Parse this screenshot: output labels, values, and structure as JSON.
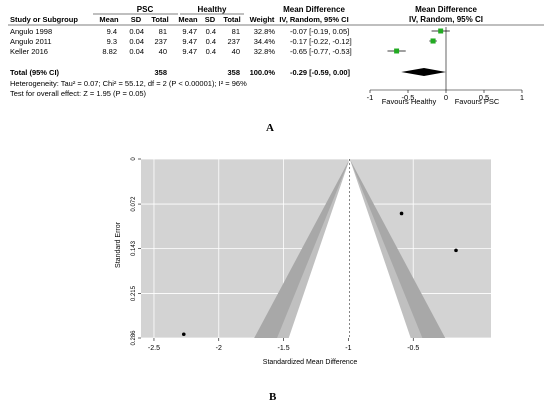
{
  "forest": {
    "header": {
      "group1": "PSC",
      "group2": "Healthy",
      "effect": "Mean Difference",
      "effect_sub": "IV, Random, 95% CI",
      "plot_title": "Mean Difference",
      "plot_sub": "IV, Random, 95% CI"
    },
    "columns": [
      "Study or Subgroup",
      "Mean",
      "SD",
      "Total",
      "Mean",
      "SD",
      "Total",
      "Weight",
      "IV, Random, 95% CI"
    ],
    "studies": [
      {
        "name": "Angulo 1998",
        "m1": "9.4",
        "sd1": "0.04",
        "n1": "81",
        "m2": "9.47",
        "sd2": "0.4",
        "n2": "81",
        "weight": "32.8%",
        "ci": "-0.07 [-0.19, 0.05]"
      },
      {
        "name": "Angulo 2011",
        "m1": "9.3",
        "sd1": "0.04",
        "n1": "237",
        "m2": "9.47",
        "sd2": "0.4",
        "n2": "237",
        "weight": "34.4%",
        "ci": "-0.17 [-0.22, -0.12]"
      },
      {
        "name": "Keller 2016",
        "m1": "8.82",
        "sd1": "0.04",
        "n1": "40",
        "m2": "9.47",
        "sd2": "0.4",
        "n2": "40",
        "weight": "32.8%",
        "ci": "-0.65 [-0.77, -0.53]"
      }
    ],
    "total": {
      "name": "Total (95% CI)",
      "n1": "358",
      "n2": "358",
      "weight": "100.0%",
      "ci": "-0.29 [-0.59, 0.00]"
    },
    "heterogeneity": "Heterogeneity: Tau² = 0.07; Chi² = 55.12, df = 2 (P < 0.00001); I² = 96%",
    "overall": "Test for overall effect: Z = 1.95 (P = 0.05)",
    "favours_left": "Favours Healthy",
    "favours_right": "Favours PSC",
    "marker_color": "#22aa22"
  },
  "panel_a": "A",
  "panel_b": "B",
  "chart_data": [
    {
      "type": "forest",
      "xlim": [
        -1,
        1
      ],
      "xticks": [
        "-1",
        "-0.5",
        "0",
        "0.5",
        "1"
      ],
      "xtick_values": [
        -1,
        -0.5,
        0,
        0.5,
        1
      ],
      "studies": [
        {
          "estimate": -0.07,
          "lower": -0.19,
          "upper": 0.05,
          "weight": 32.8
        },
        {
          "estimate": -0.17,
          "lower": -0.22,
          "upper": -0.12,
          "weight": 34.4
        },
        {
          "estimate": -0.65,
          "lower": -0.77,
          "upper": -0.53,
          "weight": 32.8
        }
      ],
      "pooled": {
        "estimate": -0.29,
        "lower": -0.59,
        "upper": 0.0
      }
    },
    {
      "type": "scatter",
      "xlabel": "Standardized Mean Difference",
      "ylabel": "Standard Error",
      "xlim": [
        -2.6,
        0.1
      ],
      "ylim": [
        0,
        0.286
      ],
      "y_reversed": true,
      "xticks": [
        "-2.5",
        "-2",
        "-1.5",
        "-1",
        "-0.5"
      ],
      "xtick_values": [
        -2.5,
        -2,
        -1.5,
        -1,
        -0.5
      ],
      "yticks": [
        "0",
        "0.072",
        "0.143",
        "0.215",
        "0.286"
      ],
      "ytick_values": [
        0,
        0.072,
        0.143,
        0.215,
        0.286
      ],
      "center": -0.99,
      "points": [
        {
          "x": -0.59,
          "y": 0.087
        },
        {
          "x": -0.17,
          "y": 0.146
        },
        {
          "x": -2.27,
          "y": 0.28
        }
      ],
      "colors": {
        "background": "#d3d3d3",
        "inner": "#ffffff",
        "band": "#a8a8a8",
        "light_band": "#c0c0c0"
      }
    }
  ]
}
